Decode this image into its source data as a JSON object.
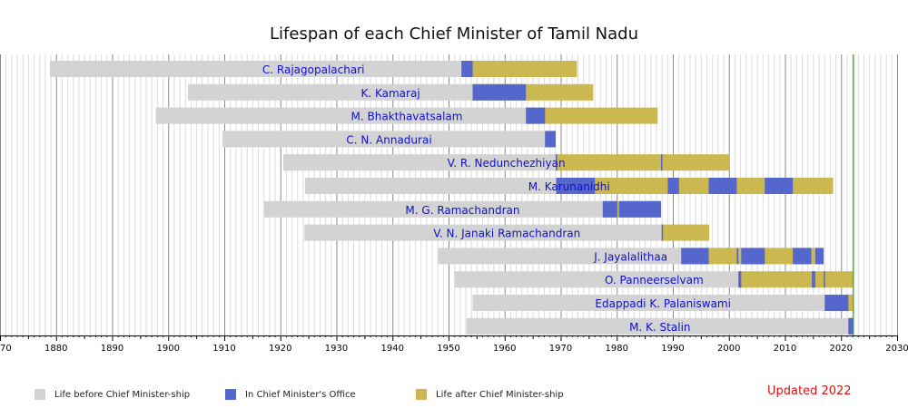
{
  "chart_data": {
    "type": "bar",
    "subtype": "timeline",
    "title": "Lifespan of each Chief Minister of Tamil Nadu",
    "xlim": [
      1870,
      2030
    ],
    "x_ticks": [
      1870,
      1880,
      1890,
      1900,
      1910,
      1920,
      1930,
      1940,
      1950,
      1960,
      1970,
      1980,
      1990,
      2000,
      2010,
      2020,
      2030
    ],
    "x_tick_labels": [
      "1870",
      "1880",
      "1890",
      "1900",
      "1910",
      "1920",
      "1930",
      "1940",
      "1950",
      "1960",
      "1970",
      "1980",
      "1990",
      "2000",
      "2010",
      "2020",
      "2030"
    ],
    "grid": "vertical, major every 10 years, minor every year",
    "current_year_marker": 2022.2,
    "colors": {
      "before": "#d3d3d3",
      "office": "#5566cc",
      "after": "#ccb850",
      "marker": "#22aa22",
      "name": "#1010cc",
      "note": "#e01010"
    },
    "legend": [
      {
        "key": "before",
        "label": "Life before Chief Minister-ship"
      },
      {
        "key": "office",
        "label": "In Chief Minister's Office"
      },
      {
        "key": "after",
        "label": "Life after Chief Minister-ship"
      }
    ],
    "note": "Updated 2022",
    "ministers": [
      {
        "name": "C. Rajagopalachari",
        "born": 1878.9,
        "died": 1972.9,
        "terms": [
          [
            1952.3,
            1954.3
          ]
        ]
      },
      {
        "name": "K. Kamaraj",
        "born": 1903.5,
        "died": 1975.8,
        "terms": [
          [
            1954.3,
            1963.8
          ]
        ]
      },
      {
        "name": "M. Bhakthavatsalam",
        "born": 1897.8,
        "died": 1987.3,
        "terms": [
          [
            1963.8,
            1967.2
          ]
        ]
      },
      {
        "name": "C. N. Annadurai",
        "born": 1909.7,
        "died": 1969.1,
        "terms": [
          [
            1967.2,
            1969.1
          ]
        ]
      },
      {
        "name": "V. R. Nedunchezhiyan",
        "born": 1920.5,
        "died": 2000.1,
        "terms": [
          [
            1969.1,
            1969.2
          ],
          [
            1987.9,
            1988.1
          ]
        ]
      },
      {
        "name": "M. Karunanidhi",
        "born": 1924.4,
        "died": 2018.6,
        "terms": [
          [
            1969.2,
            1976.1
          ],
          [
            1989.1,
            1991.1
          ],
          [
            1996.4,
            2001.4
          ],
          [
            2006.4,
            2011.4
          ]
        ]
      },
      {
        "name": "M. G. Ramachandran",
        "born": 1917.1,
        "died": 1987.9,
        "terms": [
          [
            1977.5,
            1980.1
          ],
          [
            1980.4,
            1987.9
          ]
        ]
      },
      {
        "name": "V. N. Janaki Ramachandran",
        "born": 1924.3,
        "died": 1996.5,
        "terms": [
          [
            1988.0,
            1988.1
          ]
        ]
      },
      {
        "name": "J. Jayalalithaa",
        "born": 1948.1,
        "died": 2016.9,
        "terms": [
          [
            1991.5,
            1996.4
          ],
          [
            2001.4,
            2001.7
          ],
          [
            2002.2,
            2006.4
          ],
          [
            2011.4,
            2014.7
          ],
          [
            2015.4,
            2016.9
          ]
        ]
      },
      {
        "name": "O. Panneerselvam",
        "born": 1951.1,
        "died": null,
        "terms": [
          [
            2001.7,
            2002.2
          ],
          [
            2014.8,
            2015.4
          ],
          [
            2016.9,
            2017.1
          ]
        ]
      },
      {
        "name": "Edappadi K. Palaniswami",
        "born": 1954.3,
        "died": null,
        "terms": [
          [
            2017.1,
            2021.3
          ]
        ]
      },
      {
        "name": "M. K. Stalin",
        "born": 1953.2,
        "died": null,
        "terms": [
          [
            2021.3,
            2022.2
          ]
        ]
      }
    ]
  }
}
